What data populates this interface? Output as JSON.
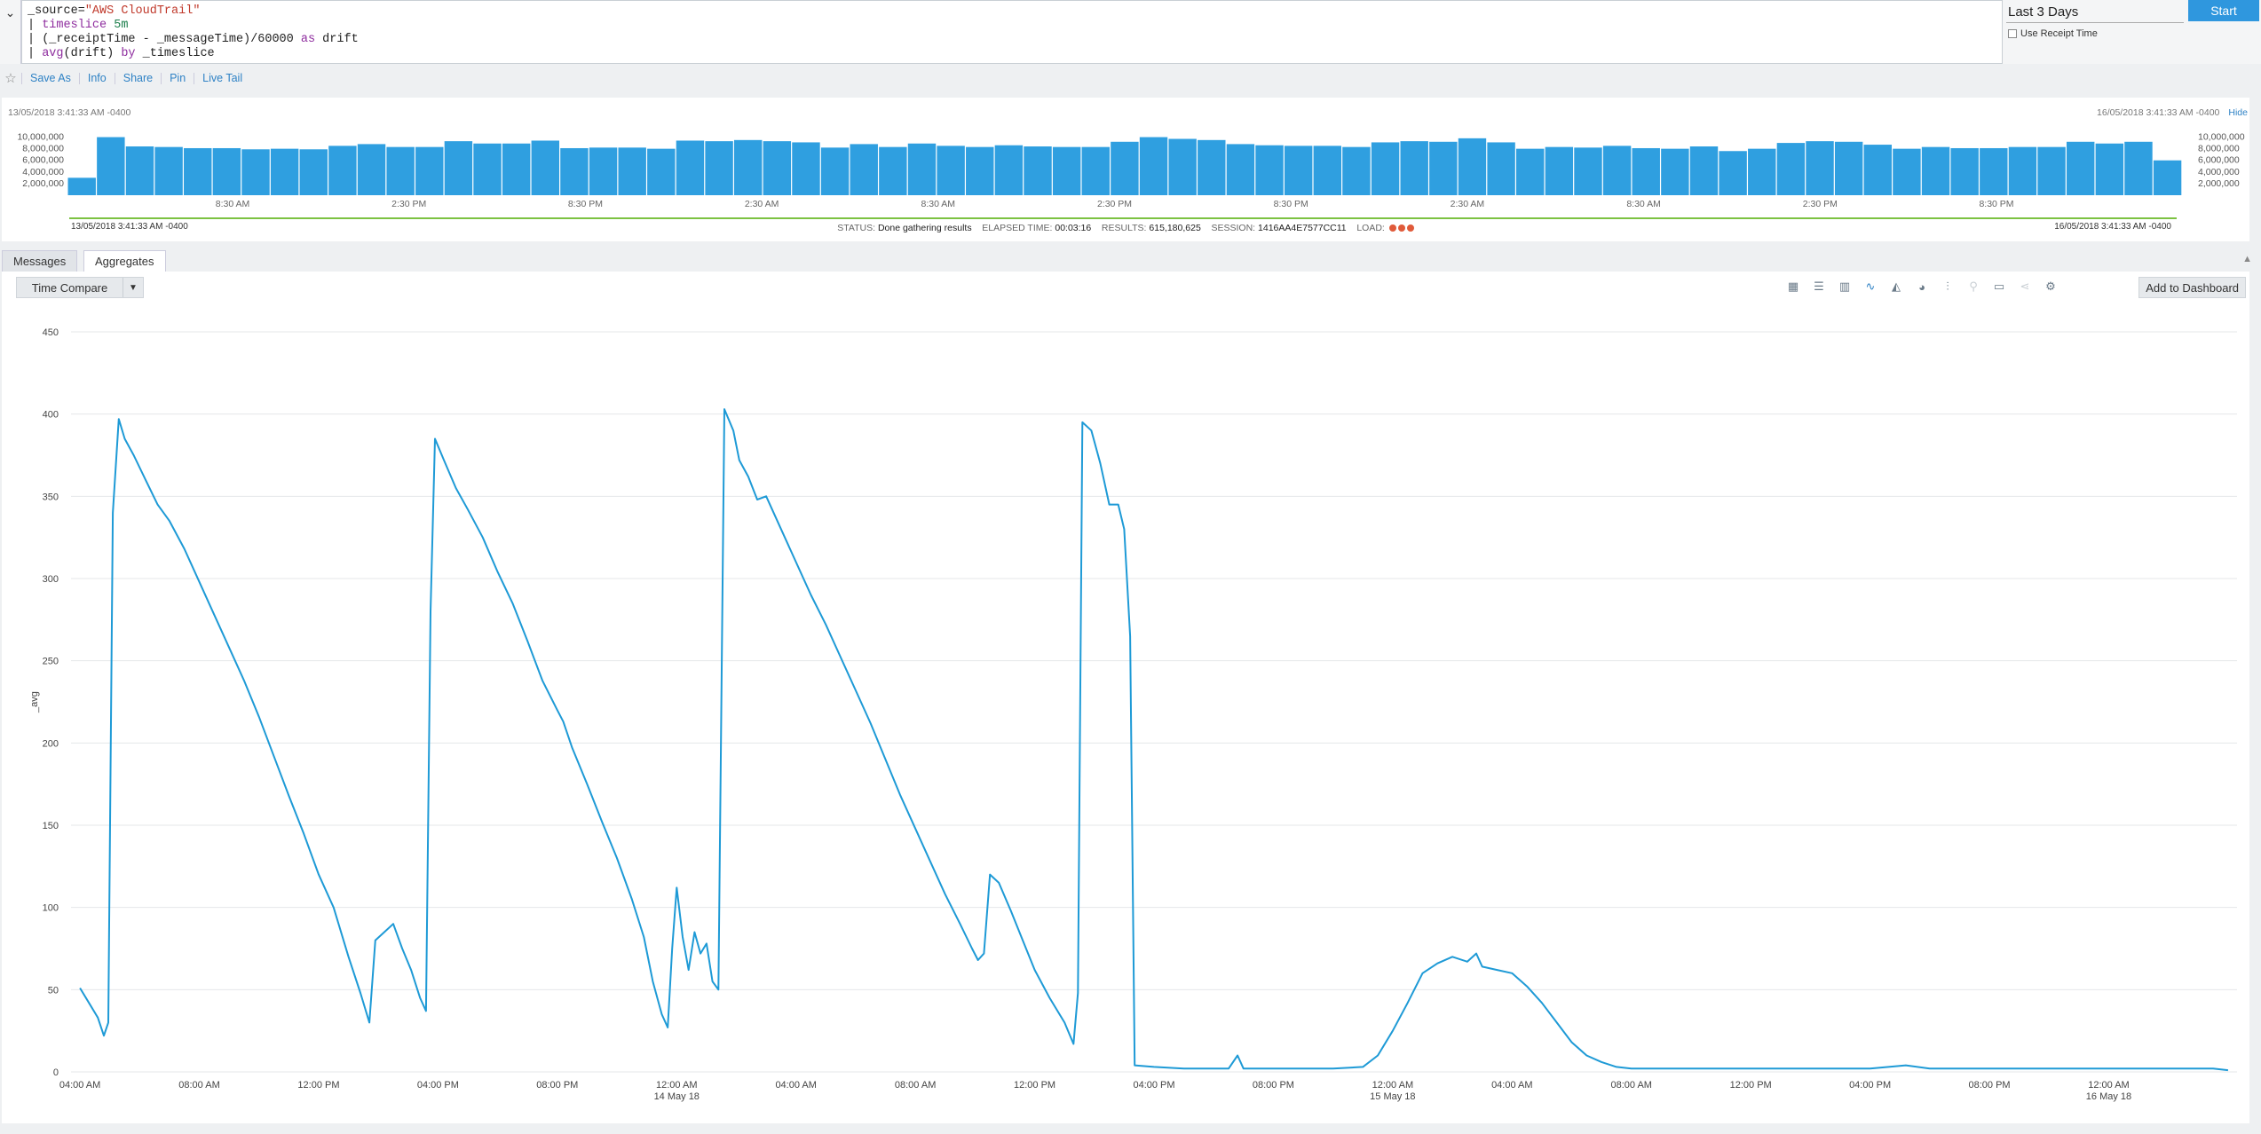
{
  "query": {
    "lines": [
      [
        {
          "t": "_source=",
          "c": ""
        },
        {
          "t": "\"AWS CloudTrail\"",
          "c": "q-str"
        }
      ],
      [
        {
          "t": "| ",
          "c": ""
        },
        {
          "t": "timeslice",
          "c": "q-kw"
        },
        {
          "t": " ",
          "c": ""
        },
        {
          "t": "5m",
          "c": "q-num"
        }
      ],
      [
        {
          "t": "| (_receiptTime - _messageTime)/60000 ",
          "c": ""
        },
        {
          "t": "as",
          "c": "q-kw"
        },
        {
          "t": " drift",
          "c": ""
        }
      ],
      [
        {
          "t": "| ",
          "c": ""
        },
        {
          "t": "avg",
          "c": "q-kw"
        },
        {
          "t": "(drift) ",
          "c": ""
        },
        {
          "t": "by",
          "c": "q-kw"
        },
        {
          "t": " _timeslice",
          "c": ""
        }
      ]
    ]
  },
  "time_range": "Last 3 Days",
  "start_label": "Start",
  "receipt_label": "Use Receipt Time",
  "actions": [
    "Save As",
    "Info",
    "Share",
    "Pin",
    "Live Tail"
  ],
  "histogram": {
    "from": "13/05/2018 3:41:33 AM -0400",
    "to": "16/05/2018 3:41:33 AM -0400",
    "hide_label": "Hide",
    "y_ticks": [
      "10,000,000",
      "8,000,000",
      "6,000,000",
      "4,000,000",
      "2,000,000"
    ],
    "x_ticks": [
      "8:30 AM",
      "2:30 PM",
      "8:30 PM",
      "2:30 AM",
      "8:30 AM",
      "2:30 PM",
      "8:30 PM",
      "2:30 AM",
      "8:30 AM",
      "2:30 PM",
      "8:30 PM"
    ],
    "values": [
      3000000,
      10000000,
      8400000,
      8300000,
      8100000,
      8100000,
      7900000,
      8000000,
      7900000,
      8500000,
      8800000,
      8300000,
      8300000,
      9300000,
      8900000,
      8900000,
      9400000,
      8100000,
      8200000,
      8200000,
      8000000,
      9400000,
      9300000,
      9500000,
      9300000,
      9100000,
      8200000,
      8800000,
      8300000,
      8900000,
      8500000,
      8300000,
      8600000,
      8400000,
      8300000,
      8300000,
      9200000,
      10000000,
      9700000,
      9500000,
      8800000,
      8600000,
      8500000,
      8500000,
      8300000,
      9100000,
      9300000,
      9200000,
      9800000,
      9100000,
      8000000,
      8300000,
      8200000,
      8500000,
      8100000,
      8000000,
      8400000,
      7600000,
      8000000,
      9000000,
      9300000,
      9200000,
      8700000,
      8000000,
      8300000,
      8100000,
      8100000,
      8300000,
      8300000,
      9200000,
      8900000,
      9200000,
      6000000
    ],
    "bar_color": "#2f9fe0"
  },
  "status": {
    "status_label": "STATUS:",
    "status_value": "Done gathering results",
    "elapsed_label": "ELAPSED TIME:",
    "elapsed_value": "00:03:16",
    "results_label": "RESULTS:",
    "results_value": "615,180,625",
    "session_label": "SESSION:",
    "session_value": "1416AA4E7577CC11",
    "load_label": "LOAD:"
  },
  "tabs": [
    "Messages",
    "Aggregates"
  ],
  "time_compare_label": "Time Compare",
  "add_dashboard_label": "Add to Dashboard",
  "chart_icons": [
    "table-icon",
    "bar-horizontal-icon",
    "column-chart-icon",
    "line-chart-icon",
    "area-chart-icon",
    "pie-chart-icon",
    "sliders-icon",
    "map-pin-icon",
    "single-value-icon",
    "share-icon",
    "gear-icon"
  ],
  "chart_data": {
    "type": "line",
    "ylabel": "_avg",
    "ylim": [
      0,
      450
    ],
    "y_ticks": [
      0,
      50,
      100,
      150,
      200,
      250,
      300,
      350,
      400,
      450
    ],
    "x_ticks": [
      "04:00 AM",
      "08:00 AM",
      "12:00 PM",
      "04:00 PM",
      "08:00 PM",
      "12:00 AM",
      "04:00 AM",
      "08:00 AM",
      "12:00 PM",
      "04:00 PM",
      "08:00 PM",
      "12:00 AM",
      "04:00 AM",
      "08:00 AM",
      "12:00 PM",
      "04:00 PM",
      "08:00 PM",
      "12:00 AM"
    ],
    "x_subticks": [
      "",
      "",
      "",
      "",
      "",
      "14 May 18",
      "",
      "",
      "",
      "",
      "",
      "15 May 18",
      "",
      "",
      "",
      "",
      "",
      "16 May 18"
    ],
    "x_hours_range": [
      3.7,
      76.3
    ],
    "grid": true,
    "color": "#1e9ad6",
    "points": [
      [
        4.0,
        51
      ],
      [
        4.3,
        42
      ],
      [
        4.6,
        33
      ],
      [
        4.8,
        22
      ],
      [
        4.95,
        30
      ],
      [
        5.1,
        340
      ],
      [
        5.3,
        397
      ],
      [
        5.5,
        385
      ],
      [
        5.8,
        375
      ],
      [
        6.2,
        360
      ],
      [
        6.6,
        345
      ],
      [
        7.0,
        335
      ],
      [
        7.5,
        318
      ],
      [
        8.0,
        298
      ],
      [
        8.5,
        278
      ],
      [
        9.0,
        258
      ],
      [
        9.5,
        238
      ],
      [
        10.0,
        216
      ],
      [
        10.5,
        192
      ],
      [
        11.0,
        168
      ],
      [
        11.5,
        145
      ],
      [
        12.0,
        120
      ],
      [
        12.5,
        100
      ],
      [
        13.0,
        70
      ],
      [
        13.4,
        48
      ],
      [
        13.7,
        30
      ],
      [
        13.9,
        80
      ],
      [
        14.2,
        85
      ],
      [
        14.5,
        90
      ],
      [
        14.8,
        75
      ],
      [
        15.1,
        62
      ],
      [
        15.4,
        45
      ],
      [
        15.6,
        37
      ],
      [
        15.75,
        280
      ],
      [
        15.9,
        385
      ],
      [
        16.2,
        372
      ],
      [
        16.6,
        355
      ],
      [
        17.0,
        342
      ],
      [
        17.5,
        325
      ],
      [
        18.0,
        304
      ],
      [
        18.5,
        285
      ],
      [
        19.0,
        262
      ],
      [
        19.5,
        238
      ],
      [
        20.0,
        220
      ],
      [
        20.2,
        213
      ],
      [
        20.5,
        197
      ],
      [
        21.0,
        175
      ],
      [
        21.5,
        152
      ],
      [
        22.0,
        130
      ],
      [
        22.5,
        105
      ],
      [
        22.9,
        82
      ],
      [
        23.2,
        55
      ],
      [
        23.5,
        35
      ],
      [
        23.7,
        27
      ],
      [
        23.85,
        75
      ],
      [
        24.0,
        112
      ],
      [
        24.2,
        82
      ],
      [
        24.4,
        62
      ],
      [
        24.6,
        85
      ],
      [
        24.8,
        72
      ],
      [
        25.0,
        78
      ],
      [
        25.2,
        55
      ],
      [
        25.4,
        50
      ],
      [
        25.6,
        403
      ],
      [
        25.9,
        390
      ],
      [
        26.1,
        372
      ],
      [
        26.4,
        362
      ],
      [
        26.7,
        348
      ],
      [
        27.0,
        350
      ],
      [
        27.5,
        330
      ],
      [
        28.0,
        310
      ],
      [
        28.5,
        290
      ],
      [
        29.0,
        272
      ],
      [
        29.5,
        252
      ],
      [
        30.0,
        232
      ],
      [
        30.5,
        212
      ],
      [
        31.0,
        190
      ],
      [
        31.5,
        168
      ],
      [
        32.0,
        148
      ],
      [
        32.5,
        128
      ],
      [
        33.0,
        108
      ],
      [
        33.5,
        90
      ],
      [
        33.9,
        75
      ],
      [
        34.1,
        68
      ],
      [
        34.3,
        72
      ],
      [
        34.5,
        120
      ],
      [
        34.8,
        115
      ],
      [
        35.2,
        98
      ],
      [
        35.6,
        80
      ],
      [
        36.0,
        62
      ],
      [
        36.5,
        45
      ],
      [
        37.0,
        30
      ],
      [
        37.3,
        17
      ],
      [
        37.45,
        48
      ],
      [
        37.6,
        395
      ],
      [
        37.9,
        390
      ],
      [
        38.2,
        370
      ],
      [
        38.5,
        345
      ],
      [
        38.8,
        345
      ],
      [
        39.0,
        330
      ],
      [
        39.2,
        265
      ],
      [
        39.35,
        4
      ],
      [
        40.0,
        3
      ],
      [
        41.0,
        2
      ],
      [
        42.0,
        2
      ],
      [
        42.5,
        2
      ],
      [
        42.8,
        10
      ],
      [
        43.0,
        2
      ],
      [
        44.0,
        2
      ],
      [
        45.0,
        2
      ],
      [
        46.0,
        2
      ],
      [
        47.0,
        3
      ],
      [
        47.5,
        10
      ],
      [
        48.0,
        25
      ],
      [
        48.5,
        42
      ],
      [
        49.0,
        60
      ],
      [
        49.5,
        66
      ],
      [
        50.0,
        70
      ],
      [
        50.5,
        67
      ],
      [
        50.8,
        72
      ],
      [
        51.0,
        64
      ],
      [
        51.5,
        62
      ],
      [
        52.0,
        60
      ],
      [
        52.5,
        52
      ],
      [
        53.0,
        42
      ],
      [
        53.5,
        30
      ],
      [
        54.0,
        18
      ],
      [
        54.5,
        10
      ],
      [
        55.0,
        6
      ],
      [
        55.5,
        3
      ],
      [
        56.0,
        2
      ],
      [
        58.0,
        2
      ],
      [
        60.0,
        2
      ],
      [
        62.0,
        2
      ],
      [
        64.0,
        2
      ],
      [
        65.2,
        4
      ],
      [
        66.0,
        2
      ],
      [
        68.0,
        2
      ],
      [
        70.0,
        2
      ],
      [
        72.0,
        2
      ],
      [
        74.0,
        2
      ],
      [
        75.5,
        2
      ],
      [
        76.0,
        1
      ]
    ]
  }
}
